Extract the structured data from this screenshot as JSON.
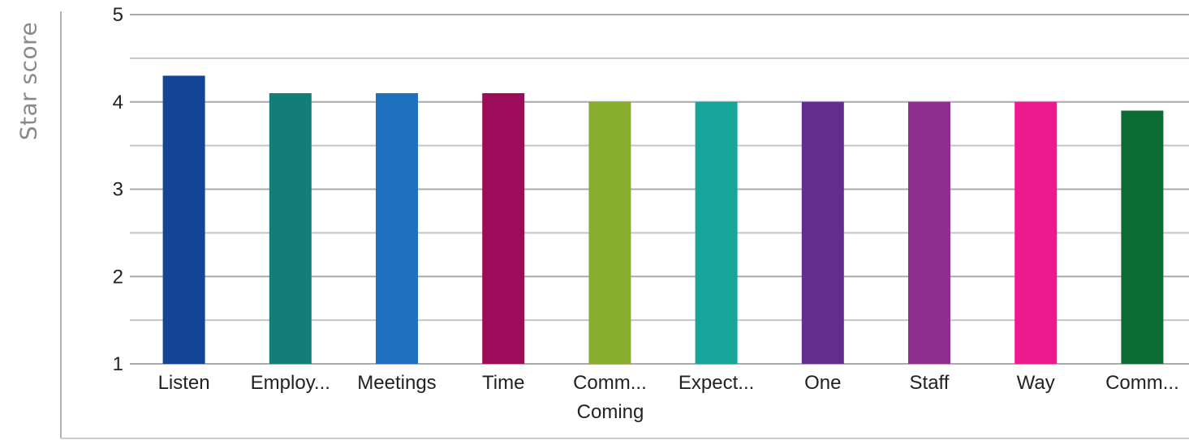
{
  "chart_data": {
    "type": "bar",
    "title": "",
    "ylabel": "Star score",
    "xlabel": "Coming",
    "ylim": [
      1,
      5
    ],
    "yticks": [
      1,
      2,
      3,
      4,
      5
    ],
    "grid": true,
    "categories": [
      "Listen",
      "Employ...",
      "Meetings",
      "Time",
      "Comm...",
      "Expect...",
      "One",
      "Staff",
      "Way",
      "Comm..."
    ],
    "values": [
      4.3,
      4.1,
      4.1,
      4.1,
      4.0,
      4.0,
      4.0,
      4.0,
      4.0,
      3.9
    ],
    "colors": [
      "#134495",
      "#137e78",
      "#1e72bd",
      "#9c0c5b",
      "#88ad2e",
      "#17a49b",
      "#632c8d",
      "#8e2e8f",
      "#ec1a8c",
      "#0c6a33"
    ]
  }
}
